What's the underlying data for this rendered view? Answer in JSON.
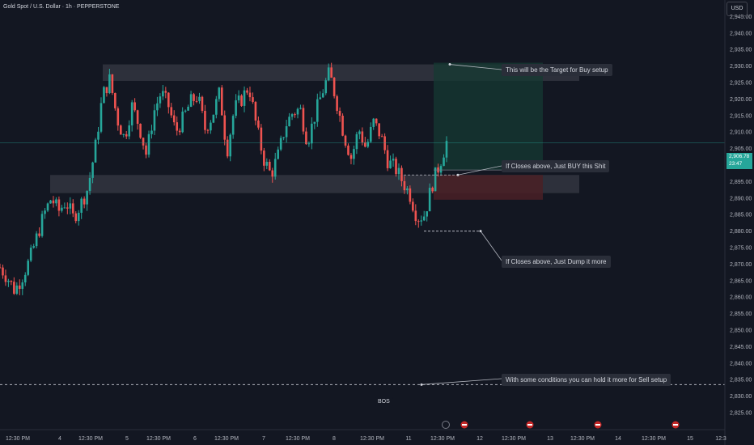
{
  "header": {
    "title": "Gold Spot / U.S. Dollar · 1h · PEPPERSTONE"
  },
  "currency_button": "USD",
  "price_tag": {
    "price": "2,906.78",
    "countdown": "23:47"
  },
  "colors": {
    "background": "#131722",
    "up": "#26a69a",
    "down": "#ef5350",
    "zone": "#434651",
    "text": "#d1d4dc",
    "buy_zone": "#163a33",
    "sell_zone": "#4a2026"
  },
  "annotations": {
    "target": "This will be the Target for Buy  setup",
    "buy": "If Closes above, Just BUY this Shit",
    "dump": "If Closes above, Just Dump it more",
    "sell": "With some conditions you can hold it more for Sell setup",
    "bos": "BOS"
  },
  "chart_data": {
    "type": "candlestick",
    "symbol": "Gold Spot / U.S. Dollar",
    "timeframe": "1h",
    "broker": "PEPPERSTONE",
    "ylim": [
      2823,
      2950
    ],
    "y_ticks": [
      "2,945.00",
      "2,940.00",
      "2,935.00",
      "2,930.00",
      "2,925.00",
      "2,920.00",
      "2,915.00",
      "2,910.00",
      "2,905.00",
      "2,900.00",
      "2,895.00",
      "2,890.00",
      "2,885.00",
      "2,880.00",
      "2,875.00",
      "2,870.00",
      "2,865.00",
      "2,860.00",
      "2,855.00",
      "2,850.00",
      "2,845.00",
      "2,840.00",
      "2,835.00",
      "2,830.00",
      "2,825.00"
    ],
    "x_ticks": [
      "12:30 PM",
      "4",
      "12:30 PM",
      "5",
      "12:30 PM",
      "6",
      "12:30 PM",
      "7",
      "12:30 PM",
      "8",
      "12:30 PM",
      "11",
      "12:30 PM",
      "12",
      "12:30 PM",
      "13",
      "12:30 PM",
      "14",
      "12:30 PM",
      "15",
      "12:3"
    ],
    "current_price": 2906.78,
    "close_path": [
      2869,
      2866,
      2862,
      2866,
      2871,
      2878,
      2885,
      2890,
      2886,
      2889,
      2884,
      2888,
      2893,
      2905,
      2921,
      2926,
      2914,
      2908,
      2918,
      2912,
      2903,
      2916,
      2922,
      2918,
      2910,
      2914,
      2919,
      2921,
      2911,
      2915,
      2922,
      2904,
      2917,
      2920,
      2924,
      2912,
      2902,
      2897,
      2903,
      2912,
      2916,
      2917,
      2907,
      2915,
      2922,
      2928,
      2919,
      2909,
      2902,
      2911,
      2905,
      2913,
      2909,
      2901,
      2899,
      2895,
      2891,
      2884,
      2885,
      2894,
      2900,
      2907
    ],
    "zones": [
      {
        "name": "resistance",
        "from": 2925.5,
        "to": 2930.5
      },
      {
        "name": "support",
        "from": 2891.5,
        "to": 2897
      },
      {
        "name": "buy_target_zone",
        "from": 2898.5,
        "to": 2931
      },
      {
        "name": "sell_zone",
        "from": 2889.5,
        "to": 2897
      }
    ],
    "levels": [
      {
        "name": "dump_level",
        "value": 2880
      },
      {
        "name": "bos_level",
        "value": 2833.5
      },
      {
        "name": "current_line",
        "value": 2906.78
      }
    ]
  }
}
